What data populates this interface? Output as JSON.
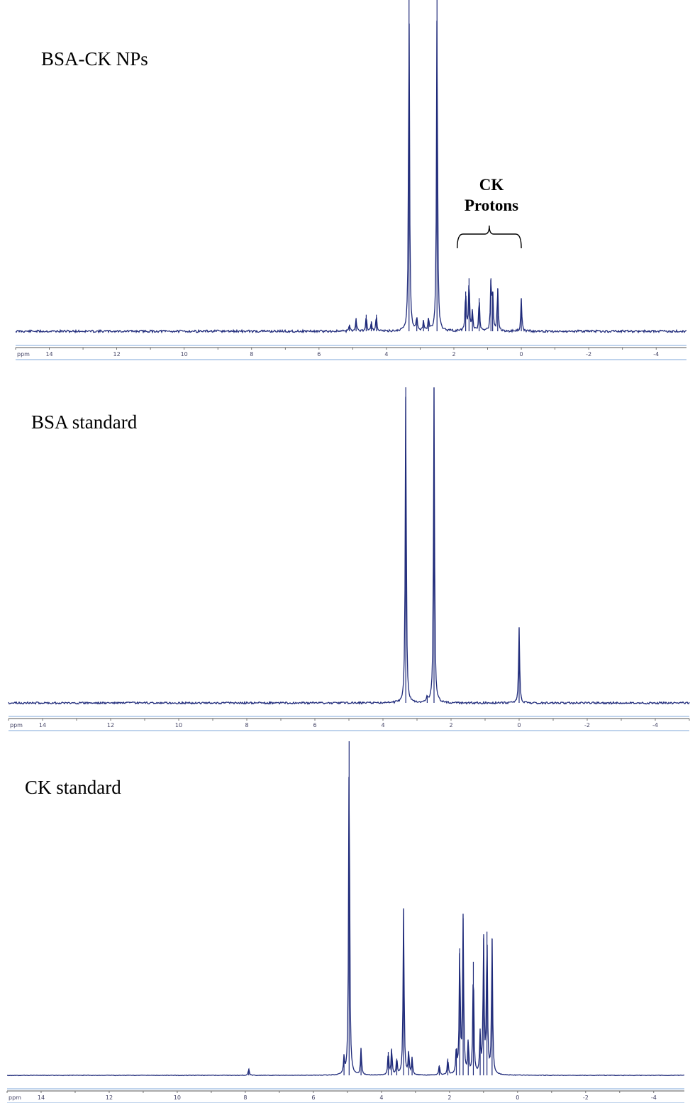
{
  "chart_data": [
    {
      "type": "line",
      "panel_label": "BSA-CK NPs",
      "xlabel": "ppm",
      "xlim": [
        15.0,
        -4.9
      ],
      "x_ticks": [
        "14",
        "12",
        "10",
        "8",
        "6",
        "4",
        "2",
        "0",
        "-2",
        "-4"
      ],
      "line_color": "#1f2a7a",
      "annotation": {
        "lines": [
          "CK",
          "Protons"
        ],
        "bracket_ppm": [
          1.9,
          0.0
        ]
      },
      "peaks": [
        {
          "ppm": 3.33,
          "height": 1.0
        },
        {
          "ppm": 2.5,
          "height": 1.0
        },
        {
          "ppm": 5.1,
          "height": 0.02
        },
        {
          "ppm": 4.9,
          "height": 0.04
        },
        {
          "ppm": 4.6,
          "height": 0.05
        },
        {
          "ppm": 4.45,
          "height": 0.03
        },
        {
          "ppm": 4.3,
          "height": 0.05
        },
        {
          "ppm": 3.1,
          "height": 0.04
        },
        {
          "ppm": 2.9,
          "height": 0.03
        },
        {
          "ppm": 2.75,
          "height": 0.04
        },
        {
          "ppm": 1.65,
          "height": 0.12
        },
        {
          "ppm": 1.55,
          "height": 0.16
        },
        {
          "ppm": 1.45,
          "height": 0.06
        },
        {
          "ppm": 1.25,
          "height": 0.1
        },
        {
          "ppm": 0.9,
          "height": 0.16
        },
        {
          "ppm": 0.85,
          "height": 0.12
        },
        {
          "ppm": 0.7,
          "height": 0.13
        },
        {
          "ppm": 0.0,
          "height": 0.1
        }
      ]
    },
    {
      "type": "line",
      "panel_label": "BSA standard",
      "xlabel": "ppm",
      "xlim": [
        15.0,
        -5.0
      ],
      "x_ticks": [
        "14",
        "12",
        "10",
        "8",
        "6",
        "4",
        "2",
        "0",
        "-2",
        "-4"
      ],
      "line_color": "#1f2a7a",
      "peaks": [
        {
          "ppm": 3.33,
          "height": 1.0
        },
        {
          "ppm": 2.5,
          "height": 1.0
        },
        {
          "ppm": 2.7,
          "height": 0.02
        },
        {
          "ppm": 0.0,
          "height": 0.24
        }
      ]
    },
    {
      "type": "line",
      "panel_label": "CK standard",
      "xlabel": "ppm",
      "xlim": [
        15.0,
        -4.9
      ],
      "x_ticks": [
        "14",
        "12",
        "10",
        "8",
        "6",
        "4",
        "2",
        "0",
        "-2",
        "-4"
      ],
      "line_color": "#1f2a7a",
      "peaks": [
        {
          "ppm": 7.9,
          "height": 0.02
        },
        {
          "ppm": 5.1,
          "height": 0.05
        },
        {
          "ppm": 4.95,
          "height": 1.0
        },
        {
          "ppm": 4.6,
          "height": 0.08
        },
        {
          "ppm": 3.8,
          "height": 0.07
        },
        {
          "ppm": 3.7,
          "height": 0.08
        },
        {
          "ppm": 3.55,
          "height": 0.05
        },
        {
          "ppm": 3.35,
          "height": 0.5
        },
        {
          "ppm": 3.2,
          "height": 0.07
        },
        {
          "ppm": 3.1,
          "height": 0.05
        },
        {
          "ppm": 2.3,
          "height": 0.03
        },
        {
          "ppm": 2.05,
          "height": 0.05
        },
        {
          "ppm": 1.8,
          "height": 0.08
        },
        {
          "ppm": 1.7,
          "height": 0.38
        },
        {
          "ppm": 1.6,
          "height": 0.47
        },
        {
          "ppm": 1.45,
          "height": 0.1
        },
        {
          "ppm": 1.3,
          "height": 0.34
        },
        {
          "ppm": 1.1,
          "height": 0.12
        },
        {
          "ppm": 1.0,
          "height": 0.41
        },
        {
          "ppm": 0.9,
          "height": 0.43
        },
        {
          "ppm": 0.75,
          "height": 0.41
        }
      ]
    }
  ]
}
